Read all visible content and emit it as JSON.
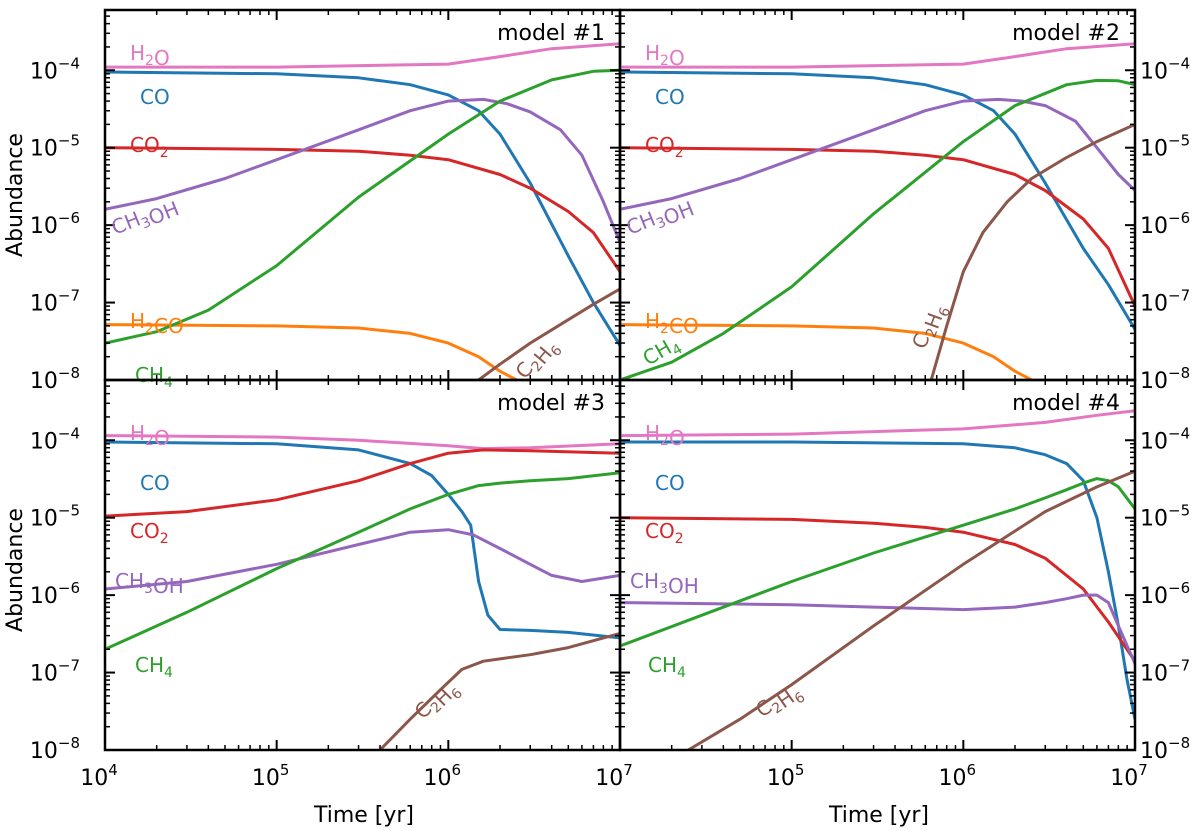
{
  "chart_data": {
    "type": "line",
    "xlabel": "Time [yr]",
    "ylabel": "Abundance",
    "xlim": [
      10000,
      10000000
    ],
    "ylim": [
      1e-08,
      0.0006
    ],
    "xticks": [
      "10",
      "10",
      "10",
      "10"
    ],
    "xtick_exponents": [
      "4",
      "5",
      "6",
      "7"
    ],
    "yticks": [
      "10",
      "10",
      "10",
      "10",
      "10"
    ],
    "ytick_exponents": [
      "−8",
      "−7",
      "−6",
      "−5",
      "−4"
    ],
    "colors": {
      "H2O": "#e377c2",
      "CO": "#1f77b4",
      "CO2": "#d62728",
      "CH3OH": "#9467bd",
      "H2CO": "#ff7f0e",
      "CH4": "#2ca02c",
      "C2H6": "#8c564b"
    },
    "panels": [
      {
        "title": "model #1",
        "series": [
          {
            "name": "H2O",
            "x": [
              10000.0,
              100000.0,
              1000000.0,
              2000000.0,
              4000000.0,
              10000000.0
            ],
            "y": [
              0.00011,
              0.00011,
              0.00012,
              0.00015,
              0.00019,
              0.00022
            ]
          },
          {
            "name": "CO",
            "x": [
              10000.0,
              100000.0,
              300000.0,
              600000.0,
              1000000.0,
              1500000.0,
              2000000.0,
              3000000.0,
              5000000.0,
              7000000.0,
              10000000.0
            ],
            "y": [
              9.5e-05,
              9e-05,
              8e-05,
              6.5e-05,
              4.8e-05,
              3e-05,
              1.5e-05,
              3.5e-06,
              4e-07,
              1e-07,
              2.8e-08
            ]
          },
          {
            "name": "CO2",
            "x": [
              10000.0,
              100000.0,
              300000.0,
              600000.0,
              1000000.0,
              2000000.0,
              3000000.0,
              5000000.0,
              7000000.0,
              10000000.0
            ],
            "y": [
              1e-05,
              9.5e-06,
              9e-06,
              8e-06,
              7e-06,
              4.5e-06,
              3e-06,
              1.5e-06,
              8e-07,
              2.5e-07
            ]
          },
          {
            "name": "CH3OH",
            "x": [
              10000.0,
              20000.0,
              50000.0,
              100000.0,
              300000.0,
              600000.0,
              1000000.0,
              1600000.0,
              2200000.0,
              3000000.0,
              4500000.0,
              6000000.0,
              8000000.0,
              10000000.0
            ],
            "y": [
              1.6e-06,
              2.2e-06,
              4e-06,
              7e-06,
              1.7e-05,
              3e-05,
              4e-05,
              4.2e-05,
              3.7e-05,
              2.9e-05,
              1.7e-05,
              8e-06,
              2e-06,
              6e-07
            ]
          },
          {
            "name": "H2CO",
            "x": [
              10000.0,
              100000.0,
              300000.0,
              600000.0,
              1000000.0,
              1500000.0,
              2000000.0,
              2500000.0
            ],
            "y": [
              5.2e-08,
              5e-08,
              4.7e-08,
              4e-08,
              3e-08,
              2e-08,
              1.3e-08,
              1e-08
            ]
          },
          {
            "name": "CH4",
            "x": [
              10000.0,
              20000.0,
              40000.0,
              100000.0,
              300000.0,
              1000000.0,
              2000000.0,
              4000000.0,
              7000000.0,
              10000000.0
            ],
            "y": [
              3e-08,
              4.2e-08,
              8e-08,
              3e-07,
              2.3e-06,
              1.5e-05,
              4e-05,
              7.5e-05,
              9.7e-05,
              0.0001
            ]
          },
          {
            "name": "C2H6",
            "x": [
              1500000.0,
              2000000.0,
              3000000.0,
              5000000.0,
              7000000.0,
              10000000.0
            ],
            "y": [
              1e-08,
              1.6e-08,
              3e-08,
              6e-08,
              9.5e-08,
              1.5e-07
            ]
          }
        ],
        "labels": {
          "H2O": "H₂O",
          "CO": "CO",
          "CO2": "CO₂",
          "CH3OH": "CH₃OH",
          "H2CO": "H₂CO",
          "CH4": "CH₄",
          "C2H6": "C₂H₆"
        }
      },
      {
        "title": "model #2",
        "series": [
          {
            "name": "H2O",
            "x": [
              10000.0,
              100000.0,
              1000000.0,
              2000000.0,
              4000000.0,
              10000000.0
            ],
            "y": [
              0.00011,
              0.00011,
              0.00012,
              0.00015,
              0.00019,
              0.00022
            ]
          },
          {
            "name": "CO",
            "x": [
              10000.0,
              100000.0,
              300000.0,
              600000.0,
              1000000.0,
              1500000.0,
              2000000.0,
              3000000.0,
              5000000.0,
              7000000.0,
              10000000.0
            ],
            "y": [
              9.5e-05,
              9e-05,
              8e-05,
              6.5e-05,
              4.8e-05,
              3e-05,
              1.5e-05,
              3.5e-06,
              5e-07,
              1.7e-07,
              4.5e-08
            ]
          },
          {
            "name": "CO2",
            "x": [
              10000.0,
              100000.0,
              300000.0,
              600000.0,
              1000000.0,
              2000000.0,
              3000000.0,
              5000000.0,
              7000000.0,
              10000000.0
            ],
            "y": [
              1e-05,
              9.5e-06,
              9e-06,
              8e-06,
              7e-06,
              4.5e-06,
              2.8e-06,
              1.2e-06,
              5e-07,
              9e-08
            ]
          },
          {
            "name": "CH3OH",
            "x": [
              10000.0,
              20000.0,
              50000.0,
              100000.0,
              300000.0,
              600000.0,
              1000000.0,
              1600000.0,
              2200000.0,
              3000000.0,
              4500000.0,
              6000000.0,
              8000000.0,
              10000000.0
            ],
            "y": [
              1.6e-06,
              2.2e-06,
              4e-06,
              7e-06,
              1.7e-05,
              3e-05,
              4e-05,
              4.2e-05,
              4e-05,
              3.5e-05,
              2.2e-05,
              1e-05,
              4.5e-06,
              2.8e-06
            ]
          },
          {
            "name": "H2CO",
            "x": [
              10000.0,
              100000.0,
              300000.0,
              600000.0,
              1000000.0,
              1500000.0,
              2000000.0,
              2500000.0
            ],
            "y": [
              5.2e-08,
              5e-08,
              4.7e-08,
              4e-08,
              3e-08,
              2e-08,
              1.3e-08,
              1e-08
            ]
          },
          {
            "name": "CH4",
            "x": [
              10000.0,
              20000.0,
              40000.0,
              100000.0,
              300000.0,
              1000000.0,
              2000000.0,
              4000000.0,
              6000000.0,
              8000000.0,
              10000000.0
            ],
            "y": [
              1e-08,
              1.7e-08,
              4e-08,
              1.6e-07,
              1.4e-06,
              1.2e-05,
              3.5e-05,
              6.5e-05,
              7.4e-05,
              7.3e-05,
              6.5e-05
            ]
          },
          {
            "name": "C2H6",
            "x": [
              650000.0,
              800000.0,
              1000000.0,
              1300000.0,
              1800000.0,
              2500000.0,
              4000000.0,
              6000000.0,
              10000000.0
            ],
            "y": [
              1e-08,
              5e-08,
              2.5e-07,
              8e-07,
              2e-06,
              4e-06,
              7.5e-06,
              1.2e-05,
              2e-05
            ]
          }
        ],
        "labels": {
          "H2O": "H₂O",
          "CO": "CO",
          "CO2": "CO₂",
          "CH3OH": "CH₃OH",
          "H2CO": "H₂CO",
          "CH4": "CH₄",
          "C2H6": "C₂H₆"
        }
      },
      {
        "title": "model #3",
        "series": [
          {
            "name": "H2O",
            "x": [
              10000.0,
              100000.0,
              300000.0,
              1000000.0,
              1600000.0,
              3000000.0,
              10000000.0
            ],
            "y": [
              0.000115,
              0.00011,
              0.0001,
              8.5e-05,
              7.8e-05,
              8e-05,
              9e-05
            ]
          },
          {
            "name": "CO",
            "x": [
              10000.0,
              100000.0,
              300000.0,
              600000.0,
              800000.0,
              1000000.0,
              1200000.0,
              1350000.0,
              1500000.0,
              1700000.0,
              2000000.0,
              3000000.0,
              5000000.0,
              10000000.0
            ],
            "y": [
              9.5e-05,
              9e-05,
              7.5e-05,
              5e-05,
              3.5e-05,
              2e-05,
              1.2e-05,
              8e-06,
              1.5e-06,
              5.5e-07,
              3.6e-07,
              3.5e-07,
              3.3e-07,
              2.8e-07
            ]
          },
          {
            "name": "CO2",
            "x": [
              10000.0,
              30000.0,
              100000.0,
              300000.0,
              600000.0,
              1000000.0,
              1600000.0,
              3000000.0,
              10000000.0
            ],
            "y": [
              1.05e-05,
              1.2e-05,
              1.7e-05,
              3e-05,
              5e-05,
              6.8e-05,
              7.5e-05,
              7.3e-05,
              6.8e-05
            ]
          },
          {
            "name": "CH3OH",
            "x": [
              10000.0,
              30000.0,
              100000.0,
              300000.0,
              600000.0,
              1000000.0,
              1400000.0,
              2000000.0,
              3000000.0,
              4000000.0,
              6000000.0,
              10000000.0
            ],
            "y": [
              1.2e-06,
              1.5e-06,
              2.5e-06,
              4.5e-06,
              6.5e-06,
              7e-06,
              6e-06,
              4e-06,
              2.5e-06,
              1.8e-06,
              1.5e-06,
              1.8e-06
            ]
          },
          {
            "name": "CH4",
            "x": [
              10000.0,
              30000.0,
              100000.0,
              300000.0,
              600000.0,
              1000000.0,
              1500000.0,
              2000000.0,
              3000000.0,
              5000000.0,
              10000000.0
            ],
            "y": [
              2e-07,
              6e-07,
              2.2e-06,
              6.5e-06,
              1.3e-05,
              2e-05,
              2.6e-05,
              2.8e-05,
              3e-05,
              3.2e-05,
              3.8e-05
            ]
          },
          {
            "name": "C2H6",
            "x": [
              400000.0,
              600000.0,
              900000.0,
              1200000.0,
              1600000.0,
              2000000.0,
              3000000.0,
              5000000.0,
              10000000.0
            ],
            "y": [
              1e-08,
              2.5e-08,
              6e-08,
              1.1e-07,
              1.4e-07,
              1.5e-07,
              1.7e-07,
              2.1e-07,
              3.2e-07
            ]
          }
        ],
        "labels": {
          "H2O": "H₂O",
          "CO": "CO",
          "CO2": "CO₂",
          "CH3OH": "CH₃OH",
          "CH4": "CH₄",
          "C2H6": "C₂H₆"
        }
      },
      {
        "title": "model #4",
        "series": [
          {
            "name": "H2O",
            "x": [
              10000.0,
              100000.0,
              1000000.0,
              3000000.0,
              6000000.0,
              10000000.0
            ],
            "y": [
              0.000115,
              0.00012,
              0.00014,
              0.00017,
              0.00021,
              0.00024
            ]
          },
          {
            "name": "CO",
            "x": [
              10000.0,
              100000.0,
              1000000.0,
              2000000.0,
              3000000.0,
              4000000.0,
              5000000.0,
              6000000.0,
              7000000.0,
              8000000.0,
              9000000.0,
              10000000.0
            ],
            "y": [
              9.5e-05,
              9.5e-05,
              9e-05,
              8e-05,
              6.5e-05,
              5e-05,
              3e-05,
              1e-05,
              2e-06,
              4e-07,
              8e-08,
              2.5e-08
            ]
          },
          {
            "name": "CO2",
            "x": [
              10000.0,
              100000.0,
              300000.0,
              600000.0,
              1000000.0,
              2000000.0,
              3000000.0,
              5000000.0,
              7000000.0,
              10000000.0
            ],
            "y": [
              1e-05,
              9.5e-06,
              8.5e-06,
              7.5e-06,
              6.5e-06,
              4.5e-06,
              3e-06,
              1.2e-06,
              4.5e-07,
              1.4e-07
            ]
          },
          {
            "name": "CH3OH",
            "x": [
              10000.0,
              100000.0,
              300000.0,
              1000000.0,
              2000000.0,
              3000000.0,
              4000000.0,
              5000000.0,
              6000000.0,
              7000000.0,
              8000000.0,
              10000000.0
            ],
            "y": [
              8e-07,
              7.5e-07,
              7e-07,
              6.5e-07,
              7e-07,
              8e-07,
              9e-07,
              1e-06,
              1e-06,
              8e-07,
              4e-07,
              1.3e-07
            ]
          },
          {
            "name": "CH4",
            "x": [
              10000.0,
              30000.0,
              100000.0,
              300000.0,
              1000000.0,
              2000000.0,
              3000000.0,
              4000000.0,
              5000000.0,
              6000000.0,
              7000000.0,
              8000000.0,
              10000000.0
            ],
            "y": [
              2.2e-07,
              5.5e-07,
              1.5e-06,
              3.5e-06,
              8e-06,
              1.3e-05,
              1.8e-05,
              2.3e-05,
              2.8e-05,
              3.2e-05,
              3e-05,
              2.5e-05,
              1.3e-05
            ]
          },
          {
            "name": "C2H6",
            "x": [
              25000.0,
              50000.0,
              100000.0,
              300000.0,
              1000000.0,
              3000000.0,
              6000000.0,
              10000000.0
            ],
            "y": [
              1e-08,
              2.5e-08,
              7e-08,
              4e-07,
              2.5e-06,
              1.2e-05,
              2.5e-05,
              4e-05
            ]
          }
        ],
        "labels": {
          "H2O": "H₂O",
          "CO": "CO",
          "CO2": "CO₂",
          "CH3OH": "CH₃OH",
          "CH4": "CH₄",
          "C2H6": "C₂H₆"
        }
      }
    ]
  }
}
